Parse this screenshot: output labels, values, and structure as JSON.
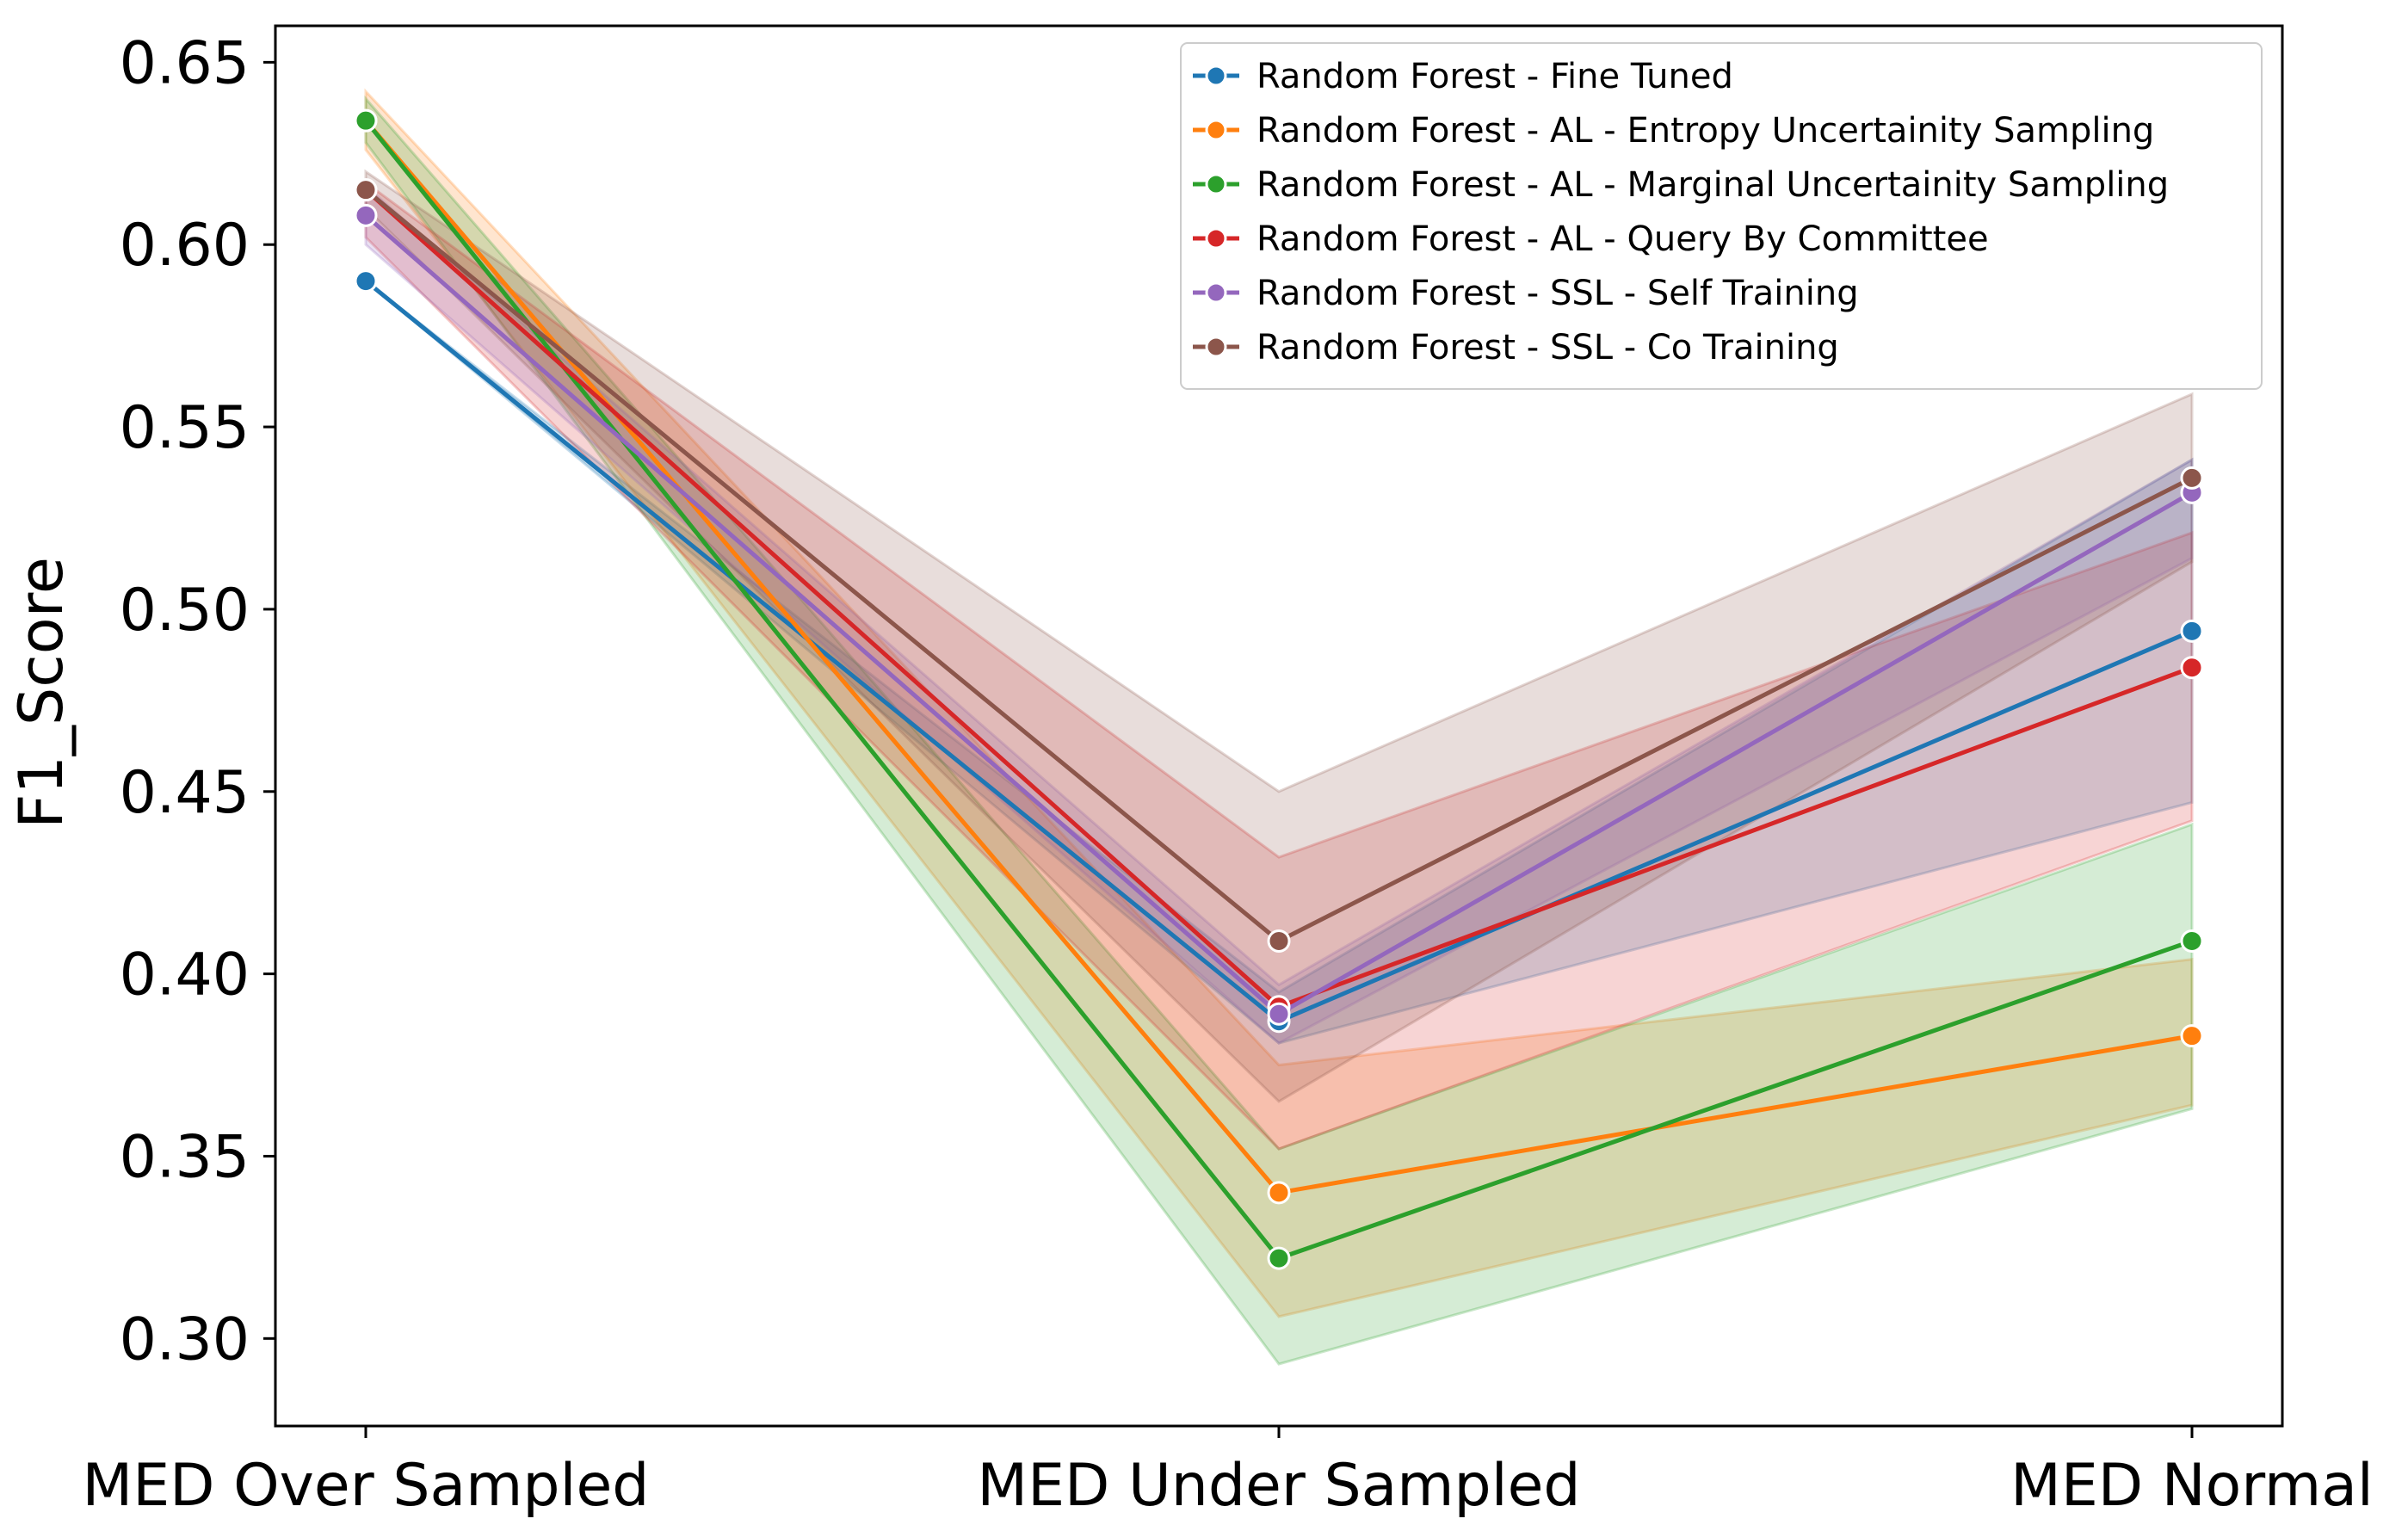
{
  "chart_data": {
    "type": "line",
    "title": "",
    "xlabel": "",
    "ylabel": "F1_Score",
    "categories": [
      "MED Over Sampled",
      "MED Under Sampled",
      "MED Normal"
    ],
    "ylim": [
      0.276,
      0.66
    ],
    "yticks": [
      0.3,
      0.35,
      0.4,
      0.45,
      0.5,
      0.55,
      0.6,
      0.65
    ],
    "ytick_labels": [
      "0.30",
      "0.35",
      "0.40",
      "0.45",
      "0.50",
      "0.55",
      "0.60",
      "0.65"
    ],
    "grid": false,
    "legend_position": "top-right",
    "series": [
      {
        "name": "Random Forest - Fine Tuned",
        "color": "#1f77b4",
        "values": [
          0.59,
          0.387,
          0.494
        ],
        "band_low": [
          0.59,
          0.381,
          0.447
        ],
        "band_high": [
          0.59,
          0.395,
          0.541
        ]
      },
      {
        "name": "Random Forest - AL - Entropy Uncertainity Sampling",
        "color": "#ff7f0e",
        "values": [
          0.634,
          0.34,
          0.383
        ],
        "band_low": [
          0.626,
          0.306,
          0.364
        ],
        "band_high": [
          0.642,
          0.375,
          0.404
        ]
      },
      {
        "name": "Random Forest - AL - Marginal Uncertainity Sampling",
        "color": "#2ca02c",
        "values": [
          0.634,
          0.322,
          0.409
        ],
        "band_low": [
          0.628,
          0.293,
          0.363
        ],
        "band_high": [
          0.64,
          0.352,
          0.441
        ]
      },
      {
        "name": "Random Forest - AL - Query By Committee",
        "color": "#d62728",
        "values": [
          0.615,
          0.391,
          0.484
        ],
        "band_low": [
          0.602,
          0.352,
          0.442
        ],
        "band_high": [
          0.617,
          0.432,
          0.521
        ]
      },
      {
        "name": "Random Forest - SSL - Self Training",
        "color": "#9467bd",
        "values": [
          0.608,
          0.389,
          0.532
        ],
        "band_low": [
          0.6,
          0.381,
          0.514
        ],
        "band_high": [
          0.616,
          0.397,
          0.541
        ]
      },
      {
        "name": "Random Forest - SSL - Co Training",
        "color": "#8c564b",
        "values": [
          0.615,
          0.409,
          0.536
        ],
        "band_low": [
          0.61,
          0.365,
          0.513
        ],
        "band_high": [
          0.62,
          0.45,
          0.559
        ]
      }
    ]
  }
}
